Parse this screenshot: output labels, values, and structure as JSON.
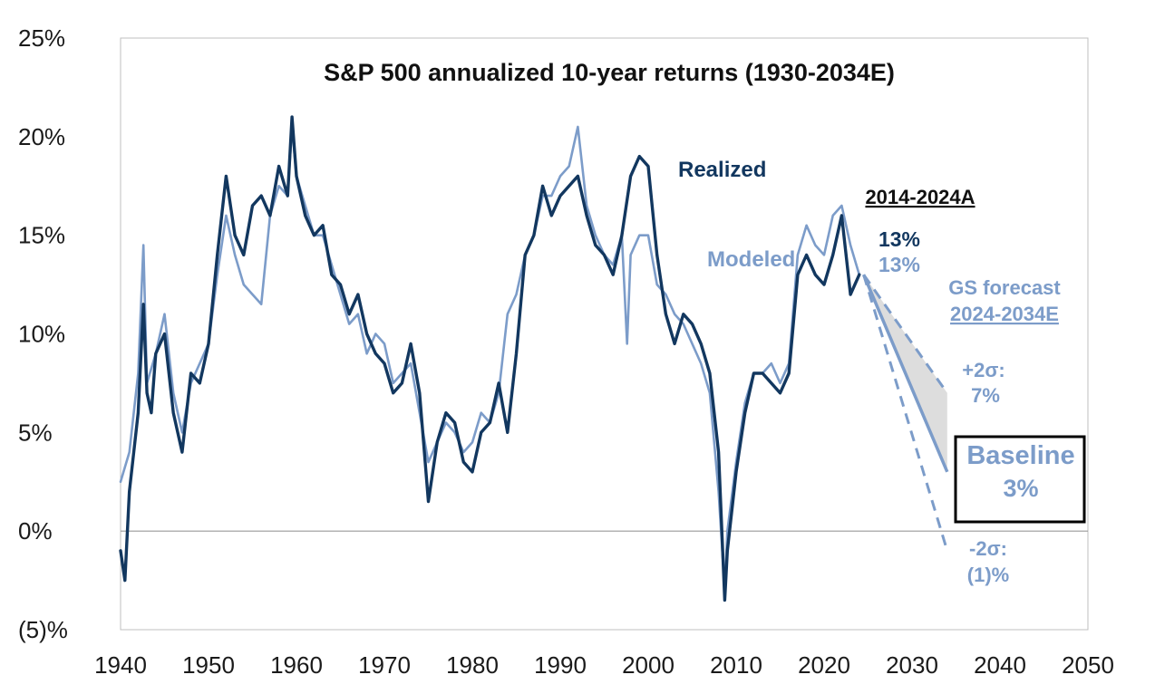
{
  "chart_data": {
    "type": "line",
    "title": "S&P 500 annualized 10-year returns (1930-2034E)",
    "xlim": [
      1940,
      2050
    ],
    "ylim": [
      -5,
      25
    ],
    "x_ticks": [
      1940,
      1950,
      1960,
      1970,
      1980,
      1990,
      2000,
      2010,
      2020,
      2030,
      2040,
      2050
    ],
    "y_ticks": [
      25,
      20,
      15,
      10,
      5,
      0,
      -5
    ],
    "y_tick_labels": [
      "25%",
      "20%",
      "15%",
      "10%",
      "5%",
      "0%",
      "(5)%"
    ],
    "grid": false,
    "colors": {
      "realized": "#12375f",
      "modeled": "#7c9cc9",
      "band": "#d9d9d9",
      "zero_line": "#9a9a9a"
    },
    "series": [
      {
        "name": "Realized",
        "x": [
          1940,
          1940.5,
          1941,
          1942,
          1942.6,
          1943,
          1943.5,
          1944,
          1945,
          1946,
          1947,
          1948,
          1949,
          1950,
          1951,
          1952,
          1953,
          1954,
          1955,
          1956,
          1957,
          1958,
          1959,
          1959.5,
          1960,
          1961,
          1962,
          1963,
          1964,
          1965,
          1966,
          1967,
          1968,
          1969,
          1970,
          1971,
          1972,
          1973,
          1974,
          1975,
          1976,
          1977,
          1978,
          1979,
          1980,
          1981,
          1982,
          1983,
          1984,
          1985,
          1986,
          1987,
          1988,
          1989,
          1990,
          1991,
          1992,
          1993,
          1994,
          1995,
          1996,
          1997,
          1998,
          1999,
          2000,
          2001,
          2002,
          2003,
          2004,
          2005,
          2006,
          2007,
          2008,
          2008.7,
          2009,
          2010,
          2011,
          2012,
          2013,
          2014,
          2015,
          2016,
          2017,
          2018,
          2019,
          2020,
          2021,
          2022,
          2023,
          2024
        ],
        "values": [
          -1,
          -2.5,
          2,
          6,
          11.5,
          7,
          6,
          9,
          10,
          6,
          4,
          8,
          7.5,
          9.5,
          14,
          18,
          15,
          14,
          16.5,
          17,
          16,
          18.5,
          17,
          21,
          18,
          16,
          15,
          15.5,
          13,
          12.5,
          11,
          12,
          10,
          9,
          8.5,
          7,
          7.5,
          9.5,
          7,
          1.5,
          4.5,
          6,
          5.5,
          3.5,
          3,
          5,
          5.5,
          7.5,
          5,
          9,
          14,
          15,
          17.5,
          16,
          17,
          17.5,
          18,
          16,
          14.5,
          14,
          13,
          15,
          18,
          19,
          18.5,
          14,
          11,
          9.5,
          11,
          10.5,
          9.5,
          8,
          4,
          -3.5,
          -1,
          3,
          6,
          8,
          8,
          7.5,
          7,
          8,
          13,
          14,
          13,
          12.5,
          14,
          16,
          12,
          13
        ]
      },
      {
        "name": "Modeled",
        "x": [
          1940,
          1941,
          1942,
          1942.6,
          1943,
          1944,
          1945,
          1946,
          1947,
          1948,
          1949,
          1950,
          1951,
          1952,
          1953,
          1954,
          1955,
          1956,
          1957,
          1958,
          1959,
          1959.5,
          1960,
          1961,
          1962,
          1963,
          1964,
          1965,
          1966,
          1967,
          1968,
          1969,
          1970,
          1971,
          1972,
          1973,
          1974,
          1975,
          1976,
          1977,
          1978,
          1979,
          1980,
          1981,
          1982,
          1983,
          1984,
          1985,
          1986,
          1987,
          1988,
          1989,
          1990,
          1991,
          1992,
          1993,
          1994,
          1995,
          1996,
          1997,
          1997.6,
          1998,
          1999,
          2000,
          2001,
          2002,
          2003,
          2004,
          2005,
          2006,
          2007,
          2008,
          2008.7,
          2009,
          2010,
          2011,
          2012,
          2013,
          2014,
          2015,
          2016,
          2017,
          2018,
          2019,
          2020,
          2021,
          2022,
          2023,
          2024
        ],
        "values": [
          2.5,
          4,
          8,
          14.5,
          7.5,
          9,
          11,
          7,
          5,
          7.5,
          8.5,
          9.5,
          13,
          16,
          14,
          12.5,
          12,
          11.5,
          16,
          17.5,
          17,
          20.5,
          18,
          16.5,
          15,
          15,
          13.5,
          12,
          10.5,
          11,
          9,
          10,
          9.5,
          7.5,
          8,
          8.5,
          6,
          3.5,
          4.5,
          5.5,
          5,
          4,
          4.5,
          6,
          5.5,
          7,
          11,
          12,
          14,
          15,
          17,
          17,
          18,
          18.5,
          20.5,
          16.5,
          15,
          14,
          13.5,
          15,
          9.5,
          14,
          15,
          15,
          12.5,
          12,
          11,
          10.5,
          9.5,
          8.5,
          7,
          2,
          -3,
          0,
          3.5,
          6.5,
          8,
          8,
          8.5,
          7.5,
          8.5,
          14,
          15.5,
          14.5,
          14,
          16,
          16.5,
          14.5,
          13
        ]
      }
    ],
    "forecast": {
      "label": "GS forecast",
      "period": "2024-2034E",
      "start": {
        "x": 2024.5,
        "y": 13
      },
      "baseline": {
        "x": 2034,
        "y": 3
      },
      "upper": {
        "x": 2034,
        "y": 7
      },
      "lower": {
        "x": 2034,
        "y": -1
      }
    },
    "annotations": {
      "realized": "Realized",
      "modeled": "Modeled",
      "period_actual": "2014-2024A",
      "realized_value": "13%",
      "modeled_value": "13%",
      "upper_label": "+2σ:",
      "upper_value": "7%",
      "lower_label": "-2σ:",
      "lower_value": "(1)%",
      "baseline_label": "Baseline",
      "baseline_value": "3%"
    }
  }
}
